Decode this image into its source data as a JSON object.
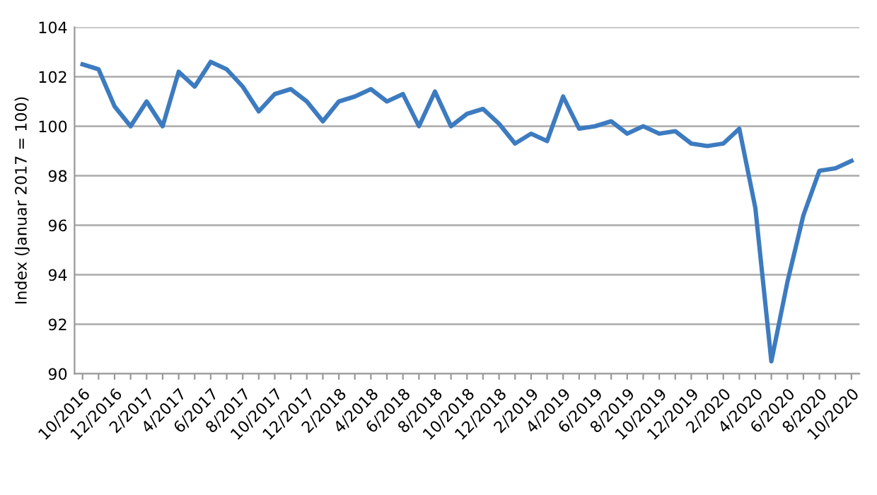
{
  "chart_data": {
    "type": "line",
    "ylabel": "Index (Januar 2017 = 100)",
    "categories": [
      "10/2016",
      null,
      "12/2016",
      null,
      "2/2017",
      null,
      "4/2017",
      null,
      "6/2017",
      null,
      "8/2017",
      null,
      "10/2017",
      null,
      "12/2017",
      null,
      "2/2018",
      null,
      "4/2018",
      null,
      "6/2018",
      null,
      "8/2018",
      null,
      "10/2018",
      null,
      "12/2018",
      null,
      "2/2019",
      null,
      "4/2019",
      null,
      "6/2019",
      null,
      "8/2019",
      null,
      "10/2019",
      null,
      "12/2019",
      null,
      "2/2020",
      null,
      "4/2020",
      null,
      "6/2020",
      null,
      "8/2020",
      null,
      "10/2020"
    ],
    "series": [
      {
        "color": "#3d7bc0",
        "values": [
          102.5,
          102.3,
          100.8,
          100.0,
          101.0,
          100.0,
          102.2,
          101.6,
          102.6,
          102.3,
          101.6,
          100.6,
          101.3,
          101.5,
          101.0,
          100.2,
          101.0,
          101.2,
          101.5,
          101.0,
          101.3,
          100.0,
          101.4,
          100.0,
          100.5,
          100.7,
          100.1,
          99.3,
          99.7,
          99.4,
          101.2,
          99.9,
          100.0,
          100.2,
          99.7,
          100.0,
          99.7,
          99.8,
          99.3,
          99.2,
          99.3,
          99.9,
          96.7,
          90.5,
          93.7,
          96.4,
          98.2,
          98.3,
          98.6
        ]
      }
    ],
    "ylim": [
      90,
      104
    ],
    "yticks": [
      90,
      92,
      94,
      96,
      98,
      100,
      102,
      104
    ],
    "grid": "y",
    "marker": "none",
    "line_style": "solid"
  }
}
